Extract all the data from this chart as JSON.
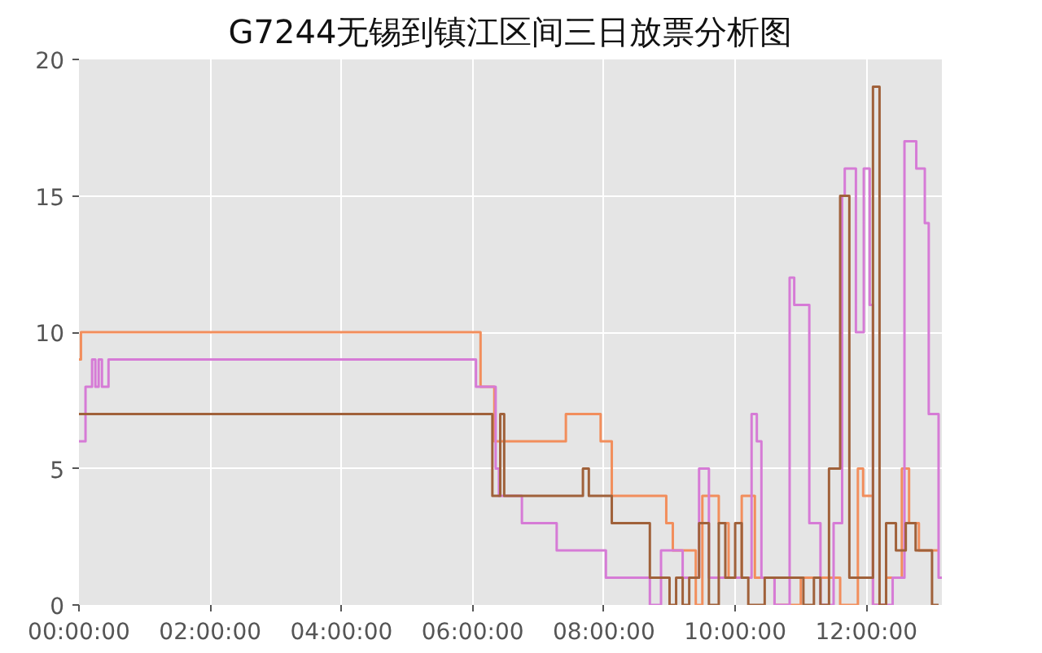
{
  "chart_data": {
    "type": "step",
    "title": "G7244无锡到镇江区间三日放票分析图",
    "xlim": [
      0,
      13.15
    ],
    "ylim": [
      0,
      20
    ],
    "xticks": [
      {
        "value": 0,
        "label": "00:00:00"
      },
      {
        "value": 2,
        "label": "02:00:00"
      },
      {
        "value": 4,
        "label": "04:00:00"
      },
      {
        "value": 6,
        "label": "06:00:00"
      },
      {
        "value": 8,
        "label": "08:00:00"
      },
      {
        "value": 10,
        "label": "10:00:00"
      },
      {
        "value": 12,
        "label": "12:00:00"
      }
    ],
    "yticks": [
      0,
      5,
      10,
      15,
      20
    ],
    "grid": true,
    "series": [
      {
        "color": "#f28e5c",
        "x": [
          0,
          0.03,
          6.12,
          6.33,
          7.42,
          7.95,
          8.12,
          8.95,
          9.05,
          9.4,
          9.5,
          9.75,
          9.9,
          10.1,
          10.3,
          10.6,
          11.0,
          11.4,
          11.6,
          11.87,
          11.95,
          12.1,
          12.3,
          12.54,
          12.65,
          12.8,
          13.1
        ],
        "values": [
          9,
          10,
          8,
          6,
          7,
          6,
          4,
          3,
          2,
          0,
          4,
          3,
          1,
          4,
          1,
          0,
          1,
          1,
          0,
          5,
          4,
          0,
          1,
          5,
          3,
          2,
          2
        ]
      },
      {
        "color": "#d67bd6",
        "x": [
          0,
          0.1,
          0.2,
          0.25,
          0.3,
          0.35,
          0.45,
          6.05,
          6.35,
          6.4,
          6.75,
          7.28,
          8.03,
          8.7,
          8.87,
          9.2,
          9.45,
          9.6,
          10.0,
          10.25,
          10.33,
          10.4,
          10.6,
          10.83,
          10.9,
          11.13,
          11.3,
          11.5,
          11.63,
          11.67,
          11.84,
          11.9,
          11.96,
          12.05,
          12.1,
          12.4,
          12.58,
          12.76,
          12.89,
          12.95,
          13.1,
          13.15
        ],
        "values": [
          6,
          8,
          9,
          8,
          9,
          8,
          9,
          8,
          5,
          4,
          3,
          2,
          1,
          0,
          2,
          1,
          5,
          1,
          1,
          7,
          6,
          1,
          0,
          12,
          11,
          3,
          0,
          3,
          15,
          16,
          10,
          10,
          16,
          11,
          0,
          1,
          17,
          16,
          14,
          7,
          1,
          1
        ]
      },
      {
        "color": "#a0613a",
        "x": [
          0,
          6.3,
          6.42,
          6.48,
          7.68,
          7.77,
          8.12,
          8.26,
          8.7,
          9.0,
          9.1,
          9.2,
          9.3,
          9.45,
          9.6,
          9.75,
          9.85,
          10.0,
          10.1,
          10.2,
          10.45,
          10.6,
          11.04,
          11.2,
          11.3,
          11.43,
          11.6,
          11.74,
          12.1,
          12.2,
          12.3,
          12.45,
          12.6,
          12.75,
          13.0,
          13.1
        ],
        "values": [
          7,
          4,
          7,
          4,
          5,
          4,
          3,
          3,
          1,
          0,
          1,
          0,
          1,
          3,
          0,
          3,
          1,
          3,
          1,
          0,
          1,
          1,
          0,
          1,
          0,
          5,
          15,
          1,
          19,
          0,
          3,
          2,
          3,
          2,
          0,
          0
        ]
      }
    ]
  }
}
